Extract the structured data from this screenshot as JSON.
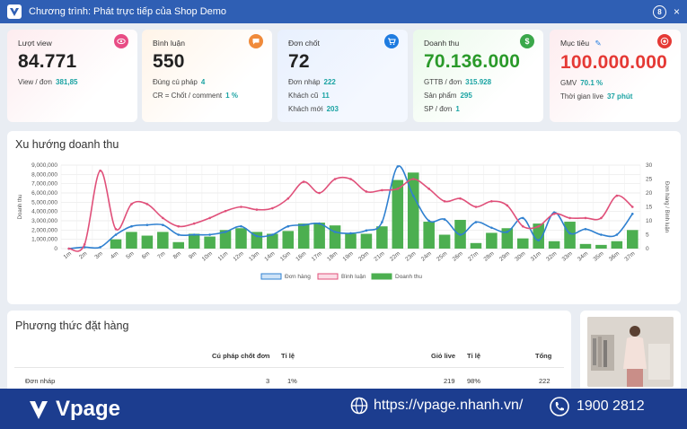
{
  "topbar": {
    "title": "Chương trình: Phát trực tiếp của Shop Demo",
    "badge": "8",
    "close": "×"
  },
  "cards": [
    {
      "label": "Lượt view",
      "value": "84.771",
      "rows": [
        {
          "k": "View / đơn",
          "v": "381,85"
        }
      ],
      "icon": "eye-icon",
      "color": "#e84c85"
    },
    {
      "label": "Bình luận",
      "value": "550",
      "rows": [
        {
          "k": "Đúng cú pháp",
          "v": "4"
        },
        {
          "k": "CR = Chốt / comment",
          "v": "1 %"
        }
      ],
      "icon": "chat-icon",
      "color": "#f08a3a"
    },
    {
      "label": "Đơn chốt",
      "value": "72",
      "rows": [
        {
          "k": "Đơn nháp",
          "v": "222"
        },
        {
          "k": "Khách cũ",
          "v": "11"
        },
        {
          "k": "Khách mới",
          "v": "203"
        }
      ],
      "icon": "cart-icon",
      "color": "#1e7be0"
    },
    {
      "label": "Doanh thu",
      "value": "70.136.000",
      "rows": [
        {
          "k": "GTTB / đơn",
          "v": "315.928"
        },
        {
          "k": "Sản phẩm",
          "v": "295"
        },
        {
          "k": "SP / đơn",
          "v": "1"
        }
      ],
      "icon": "dollar-icon",
      "color": "#3aa84a"
    },
    {
      "label": "Mục tiêu",
      "value": "100.000.000",
      "rows": [
        {
          "k": "GMV",
          "v": "70.1 %"
        },
        {
          "k": "Thời gian live",
          "v": "37 phút"
        }
      ],
      "icon": "target-icon",
      "color": "#e53935"
    }
  ],
  "chart_title": "Xu hướng doanh thu",
  "chart_data": {
    "type": "bar",
    "categories": [
      "1m",
      "2m",
      "3m",
      "4m",
      "5m",
      "6m",
      "7m",
      "8m",
      "9m",
      "10m",
      "11m",
      "12m",
      "13m",
      "14m",
      "15m",
      "16m",
      "17m",
      "18m",
      "19m",
      "20m",
      "21m",
      "22m",
      "23m",
      "24m",
      "25m",
      "26m",
      "27m",
      "28m",
      "29m",
      "30m",
      "31m",
      "32m",
      "33m",
      "34m",
      "35m",
      "36m",
      "37m"
    ],
    "series": [
      {
        "name": "Đơn hàng",
        "kind": "line",
        "axis": "right",
        "color": "#2f80d0",
        "values": [
          0,
          0.5,
          0.5,
          5,
          8,
          8.5,
          8.5,
          5,
          5,
          5,
          6,
          8,
          4.5,
          5,
          8,
          8.5,
          9,
          6,
          5.5,
          6.5,
          9.5,
          29.5,
          19,
          10,
          10.5,
          5,
          9.5,
          7.5,
          6,
          11,
          3,
          13,
          5.5,
          7,
          5,
          5,
          12.5
        ]
      },
      {
        "name": "Bình luận",
        "kind": "line",
        "axis": "right",
        "color": "#e0507a",
        "values": [
          0,
          1.5,
          28,
          7,
          16,
          16,
          11,
          8,
          9,
          11,
          13.5,
          15,
          14,
          14.5,
          18,
          24,
          20,
          25,
          25,
          20.5,
          21,
          21.5,
          25,
          21.5,
          17,
          18,
          15,
          17,
          15.5,
          8,
          8,
          12.5,
          11,
          11,
          11,
          19,
          15
        ]
      },
      {
        "name": "Doanh thu",
        "kind": "bar",
        "axis": "left",
        "color": "#4caf50",
        "values": [
          0,
          0,
          0,
          1000000,
          1800000,
          1400000,
          1800000,
          700000,
          1600000,
          1300000,
          2000000,
          2200000,
          1800000,
          1600000,
          1900000,
          2700000,
          2800000,
          2500000,
          1600000,
          1600000,
          2400000,
          7400000,
          8200000,
          2900000,
          1500000,
          3100000,
          600000,
          1700000,
          2200000,
          1100000,
          2700000,
          800000,
          2900000,
          500000,
          400000,
          800000,
          2000000
        ]
      }
    ],
    "y_left": {
      "min": 0,
      "max": 9000000,
      "step": 1000000,
      "label": "Doanh thu",
      "ticks": [
        "0",
        "1,000,000",
        "2,000,000",
        "3,000,000",
        "4,000,000",
        "5,000,000",
        "6,000,000",
        "7,000,000",
        "8,000,000",
        "9,000,000"
      ]
    },
    "y_right": {
      "min": 0,
      "max": 30,
      "step": 5,
      "label": "Đơn hàng / Bình luận",
      "ticks": [
        "0",
        "5",
        "10",
        "15",
        "20",
        "25",
        "30"
      ]
    },
    "legend": "bottom-center",
    "grid": true
  },
  "table": {
    "title": "Phương thức đặt hàng",
    "headers": [
      "Cú pháp chốt đơn",
      "Tỉ lệ",
      "Giỏ live",
      "Tỉ lệ",
      "Tổng"
    ],
    "rows": [
      {
        "name": "Đơn nháp",
        "c1": "3",
        "c2": "1%",
        "c3": "219",
        "c4": "98%",
        "c5": "222"
      }
    ]
  },
  "footer": {
    "brand": "Vpage",
    "website": "https://vpage.nhanh.vn/",
    "phone": "1900 2812"
  }
}
